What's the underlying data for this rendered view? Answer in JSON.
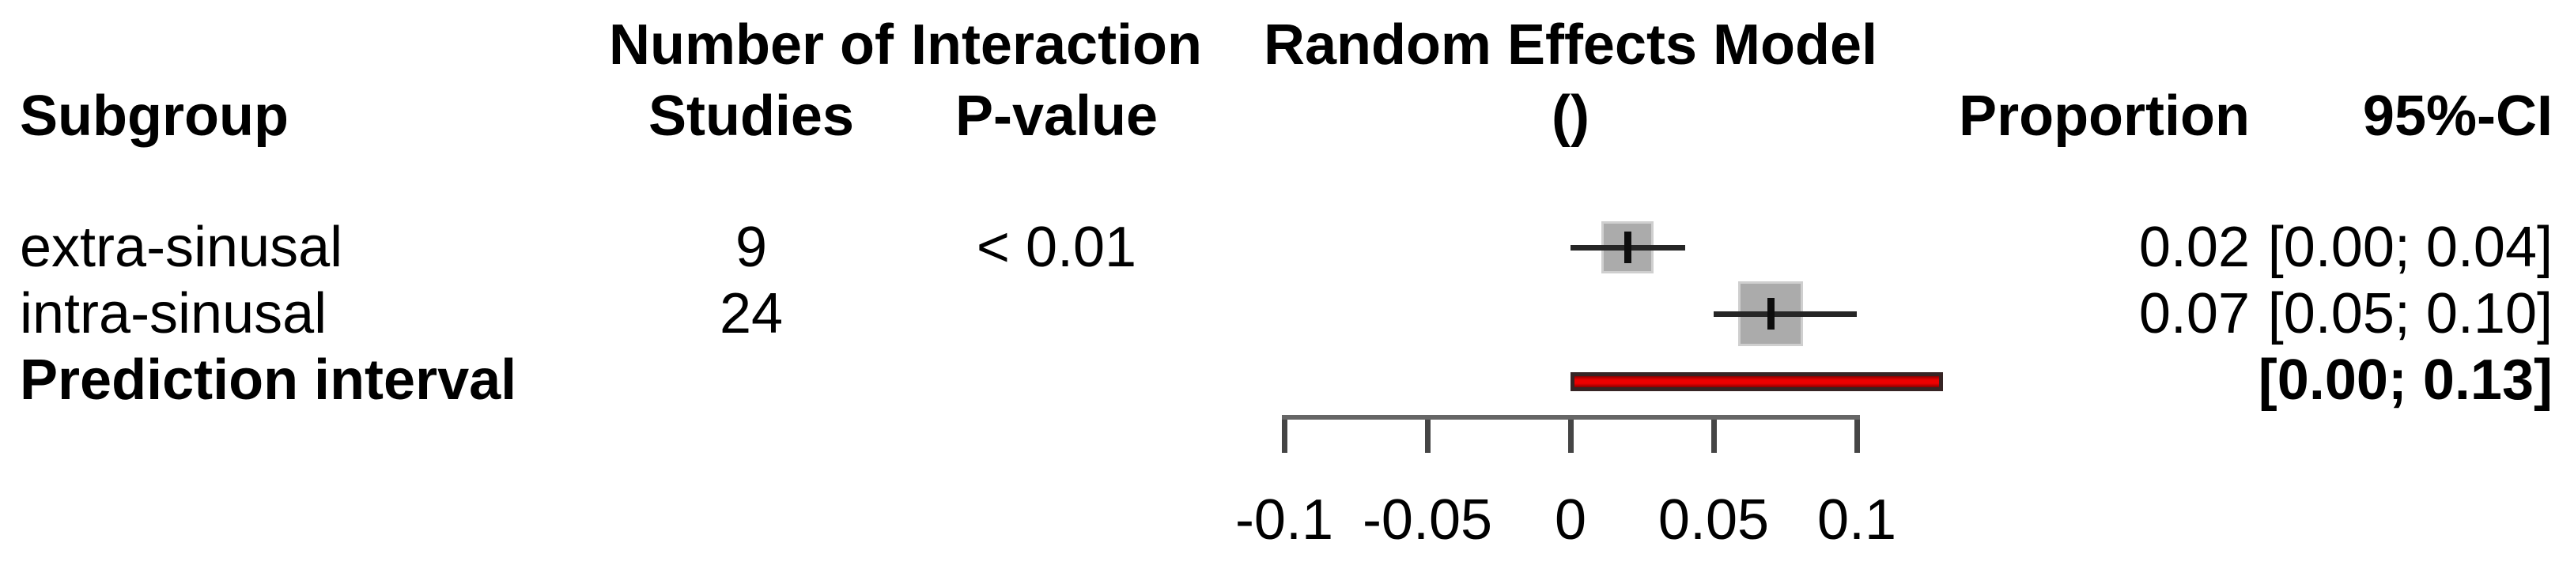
{
  "headers": {
    "subgroup": "Subgroup",
    "studies_line1": "Number of",
    "studies_line2": "Studies",
    "pvalue_line1": "Interaction",
    "pvalue_line2": "P-value",
    "model_line1": "Random Effects Model",
    "model_line2": "()",
    "proportion": "Proportion",
    "ci": "95%-CI"
  },
  "chart_data": {
    "type": "forest",
    "title": "Random Effects Model",
    "subtitle": "()",
    "xlabel": "",
    "xlim": [
      -0.1,
      0.1
    ],
    "x_ticks": [
      -0.1,
      -0.05,
      0,
      0.05,
      0.1
    ],
    "x_tick_labels": [
      "-0.1",
      "-0.05",
      "0",
      "0.05",
      "0.1"
    ],
    "grid": false,
    "marker_color": "#ababab",
    "ci_color": "#262626",
    "prediction_color": "#ee0000",
    "rows": [
      {
        "label": "extra-sinusal",
        "n_studies": "9",
        "p_value": "< 0.01",
        "proportion": 0.02,
        "proportion_label": "0.02",
        "ci": [
          0.0,
          0.04
        ],
        "ci_label": "[0.00; 0.04]",
        "marker_size": 60
      },
      {
        "label": "intra-sinusal",
        "n_studies": "24",
        "p_value": "",
        "proportion": 0.07,
        "proportion_label": "0.07",
        "ci": [
          0.05,
          0.1
        ],
        "ci_label": "[0.05; 0.10]",
        "marker_size": 76
      }
    ],
    "prediction_interval": {
      "label": "Prediction interval",
      "ci": [
        0.0,
        0.13
      ],
      "ci_label": "[0.00; 0.13]"
    }
  }
}
